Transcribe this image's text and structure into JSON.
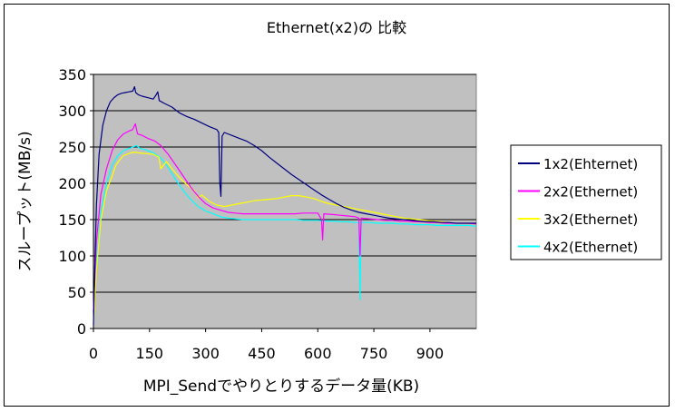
{
  "chart_data": {
    "type": "line",
    "title": "Ethernet(x2)の 比較",
    "xlabel": "MPI_Sendでやりとりするデータ量(KB)",
    "ylabel": "スループット(MB/s)",
    "xlim": [
      0,
      1024
    ],
    "ylim": [
      0,
      350
    ],
    "xticks": [
      0,
      150,
      300,
      450,
      600,
      750,
      900
    ],
    "yticks": [
      0,
      50,
      100,
      150,
      200,
      250,
      300,
      350
    ],
    "grid": true,
    "legend_position": "right",
    "plot_background": "#c0c0c0",
    "series": [
      {
        "name": "1x2(Ehternet)",
        "color": "#000080",
        "points": [
          [
            0,
            5
          ],
          [
            4,
            90
          ],
          [
            8,
            170
          ],
          [
            15,
            240
          ],
          [
            25,
            280
          ],
          [
            35,
            300
          ],
          [
            45,
            312
          ],
          [
            55,
            318
          ],
          [
            65,
            322
          ],
          [
            75,
            324
          ],
          [
            85,
            325
          ],
          [
            95,
            326
          ],
          [
            105,
            327
          ],
          [
            110,
            333
          ],
          [
            113,
            325
          ],
          [
            120,
            322
          ],
          [
            130,
            320
          ],
          [
            145,
            318
          ],
          [
            160,
            316
          ],
          [
            168,
            322
          ],
          [
            172,
            326
          ],
          [
            176,
            314
          ],
          [
            190,
            310
          ],
          [
            210,
            305
          ],
          [
            230,
            297
          ],
          [
            250,
            292
          ],
          [
            270,
            288
          ],
          [
            290,
            283
          ],
          [
            310,
            278
          ],
          [
            330,
            274
          ],
          [
            335,
            270
          ],
          [
            338,
            200
          ],
          [
            341,
            182
          ],
          [
            344,
            265
          ],
          [
            350,
            270
          ],
          [
            370,
            266
          ],
          [
            390,
            262
          ],
          [
            410,
            258
          ],
          [
            430,
            252
          ],
          [
            450,
            245
          ],
          [
            470,
            236
          ],
          [
            490,
            228
          ],
          [
            510,
            220
          ],
          [
            530,
            212
          ],
          [
            550,
            205
          ],
          [
            570,
            198
          ],
          [
            590,
            191
          ],
          [
            610,
            184
          ],
          [
            630,
            178
          ],
          [
            650,
            172
          ],
          [
            670,
            167
          ],
          [
            690,
            163
          ],
          [
            710,
            160
          ],
          [
            730,
            158
          ],
          [
            750,
            156
          ],
          [
            770,
            154
          ],
          [
            790,
            152
          ],
          [
            810,
            151
          ],
          [
            830,
            150
          ],
          [
            850,
            149
          ],
          [
            870,
            148
          ],
          [
            890,
            147
          ],
          [
            910,
            147
          ],
          [
            930,
            146
          ],
          [
            950,
            146
          ],
          [
            970,
            145
          ],
          [
            990,
            145
          ],
          [
            1024,
            145
          ]
        ]
      },
      {
        "name": "2x2(Ethernet)",
        "color": "#ff00ff",
        "points": [
          [
            0,
            25
          ],
          [
            8,
            120
          ],
          [
            20,
            185
          ],
          [
            35,
            220
          ],
          [
            50,
            245
          ],
          [
            65,
            260
          ],
          [
            80,
            268
          ],
          [
            95,
            272
          ],
          [
            105,
            274
          ],
          [
            112,
            282
          ],
          [
            118,
            268
          ],
          [
            130,
            266
          ],
          [
            145,
            262
          ],
          [
            165,
            258
          ],
          [
            180,
            252
          ],
          [
            200,
            240
          ],
          [
            220,
            225
          ],
          [
            240,
            210
          ],
          [
            260,
            195
          ],
          [
            280,
            182
          ],
          [
            300,
            172
          ],
          [
            320,
            166
          ],
          [
            340,
            163
          ],
          [
            360,
            160
          ],
          [
            380,
            159
          ],
          [
            400,
            158
          ],
          [
            420,
            158
          ],
          [
            440,
            158
          ],
          [
            460,
            158
          ],
          [
            480,
            158
          ],
          [
            500,
            158
          ],
          [
            520,
            158
          ],
          [
            540,
            158
          ],
          [
            560,
            159
          ],
          [
            580,
            159
          ],
          [
            600,
            159
          ],
          [
            610,
            150
          ],
          [
            613,
            122
          ],
          [
            616,
            158
          ],
          [
            640,
            157
          ],
          [
            660,
            156
          ],
          [
            680,
            155
          ],
          [
            700,
            154
          ],
          [
            710,
            152
          ],
          [
            713,
            100
          ],
          [
            716,
            152
          ],
          [
            740,
            151
          ],
          [
            760,
            150
          ],
          [
            780,
            149
          ],
          [
            800,
            149
          ],
          [
            820,
            148
          ],
          [
            840,
            148
          ],
          [
            860,
            147
          ],
          [
            880,
            147
          ],
          [
            900,
            146
          ],
          [
            920,
            146
          ],
          [
            940,
            145
          ],
          [
            960,
            145
          ],
          [
            980,
            145
          ],
          [
            1000,
            145
          ],
          [
            1024,
            144
          ]
        ]
      },
      {
        "name": "3x2(Ethernet)",
        "color": "#ffff00",
        "points": [
          [
            0,
            5
          ],
          [
            8,
            80
          ],
          [
            20,
            150
          ],
          [
            35,
            190
          ],
          [
            50,
            210
          ],
          [
            60,
            225
          ],
          [
            70,
            232
          ],
          [
            80,
            238
          ],
          [
            90,
            240
          ],
          [
            100,
            242
          ],
          [
            110,
            243
          ],
          [
            120,
            242
          ],
          [
            140,
            241
          ],
          [
            160,
            240
          ],
          [
            175,
            236
          ],
          [
            180,
            220
          ],
          [
            195,
            230
          ],
          [
            210,
            220
          ],
          [
            230,
            208
          ],
          [
            250,
            198
          ],
          [
            270,
            190
          ],
          [
            280,
            180
          ],
          [
            290,
            184
          ],
          [
            310,
            175
          ],
          [
            330,
            170
          ],
          [
            350,
            168
          ],
          [
            370,
            170
          ],
          [
            390,
            172
          ],
          [
            410,
            174
          ],
          [
            430,
            176
          ],
          [
            450,
            177
          ],
          [
            470,
            178
          ],
          [
            490,
            179
          ],
          [
            510,
            181
          ],
          [
            530,
            183
          ],
          [
            550,
            183
          ],
          [
            570,
            181
          ],
          [
            590,
            179
          ],
          [
            610,
            175
          ],
          [
            630,
            172
          ],
          [
            650,
            170
          ],
          [
            670,
            168
          ],
          [
            690,
            166
          ],
          [
            710,
            164
          ],
          [
            730,
            162
          ],
          [
            750,
            160
          ],
          [
            770,
            158
          ],
          [
            790,
            156
          ],
          [
            810,
            154
          ],
          [
            830,
            152
          ],
          [
            850,
            151
          ],
          [
            870,
            150
          ],
          [
            890,
            149
          ],
          [
            910,
            148
          ],
          [
            930,
            147
          ],
          [
            950,
            146
          ],
          [
            970,
            145
          ],
          [
            990,
            145
          ],
          [
            1024,
            144
          ]
        ]
      },
      {
        "name": "4x2(Ethernet)",
        "color": "#00ffff",
        "points": [
          [
            0,
            10
          ],
          [
            8,
            90
          ],
          [
            20,
            160
          ],
          [
            35,
            200
          ],
          [
            50,
            225
          ],
          [
            65,
            238
          ],
          [
            80,
            245
          ],
          [
            95,
            248
          ],
          [
            105,
            250
          ],
          [
            115,
            252
          ],
          [
            125,
            248
          ],
          [
            140,
            246
          ],
          [
            160,
            242
          ],
          [
            180,
            235
          ],
          [
            200,
            222
          ],
          [
            220,
            205
          ],
          [
            240,
            190
          ],
          [
            260,
            178
          ],
          [
            280,
            168
          ],
          [
            300,
            162
          ],
          [
            320,
            158
          ],
          [
            340,
            154
          ],
          [
            360,
            152
          ],
          [
            380,
            151
          ],
          [
            400,
            150
          ],
          [
            420,
            150
          ],
          [
            440,
            150
          ],
          [
            460,
            150
          ],
          [
            480,
            150
          ],
          [
            500,
            150
          ],
          [
            520,
            150
          ],
          [
            540,
            150
          ],
          [
            560,
            149
          ],
          [
            580,
            149
          ],
          [
            600,
            149
          ],
          [
            620,
            148
          ],
          [
            640,
            148
          ],
          [
            660,
            147
          ],
          [
            680,
            147
          ],
          [
            700,
            146
          ],
          [
            710,
            146
          ],
          [
            713,
            40
          ],
          [
            716,
            146
          ],
          [
            740,
            146
          ],
          [
            760,
            145
          ],
          [
            780,
            145
          ],
          [
            800,
            145
          ],
          [
            820,
            144
          ],
          [
            840,
            144
          ],
          [
            860,
            143
          ],
          [
            880,
            143
          ],
          [
            900,
            143
          ],
          [
            920,
            142
          ],
          [
            940,
            142
          ],
          [
            960,
            142
          ],
          [
            980,
            142
          ],
          [
            1000,
            142
          ],
          [
            1020,
            141
          ],
          [
            1024,
            141
          ]
        ]
      }
    ]
  }
}
